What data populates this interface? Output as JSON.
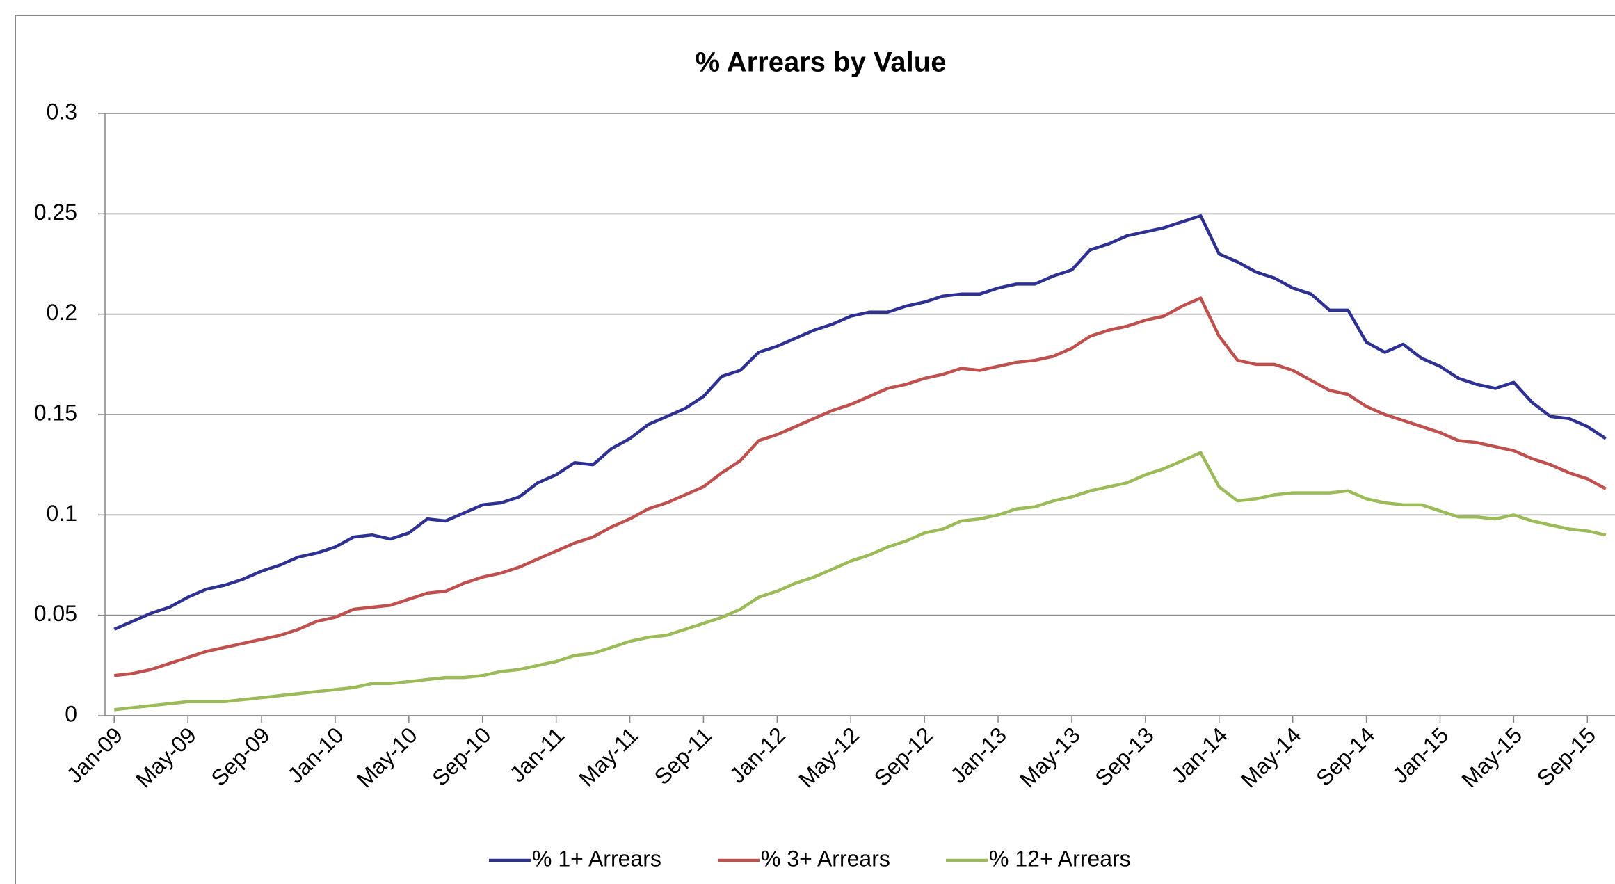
{
  "chart_data": {
    "type": "line",
    "title": "% Arrears by Value",
    "categories": [
      "Jan-09",
      null,
      null,
      null,
      "May-09",
      null,
      null,
      null,
      "Sep-09",
      null,
      null,
      null,
      "Jan-10",
      null,
      null,
      null,
      "May-10",
      null,
      null,
      null,
      "Sep-10",
      null,
      null,
      null,
      "Jan-11",
      null,
      null,
      null,
      "May-11",
      null,
      null,
      null,
      "Sep-11",
      null,
      null,
      null,
      "Jan-12",
      null,
      null,
      null,
      "May-12",
      null,
      null,
      null,
      "Sep-12",
      null,
      null,
      null,
      "Jan-13",
      null,
      null,
      null,
      "May-13",
      null,
      null,
      null,
      "Sep-13",
      null,
      null,
      null,
      "Jan-14",
      null,
      null,
      null,
      "May-14",
      null,
      null,
      null,
      "Sep-14",
      null,
      null,
      null,
      "Jan-15",
      null,
      null,
      null,
      "May-15",
      null,
      null,
      null,
      "Sep-15",
      null
    ],
    "series": [
      {
        "name": "% 1+ Arrears",
        "color": "#2e3192",
        "values": [
          0.043,
          0.047,
          0.051,
          0.054,
          0.059,
          0.063,
          0.065,
          0.068,
          0.072,
          0.075,
          0.079,
          0.081,
          0.084,
          0.089,
          0.09,
          0.088,
          0.091,
          0.098,
          0.097,
          0.101,
          0.105,
          0.106,
          0.109,
          0.116,
          0.12,
          0.126,
          0.125,
          0.133,
          0.138,
          0.145,
          0.149,
          0.153,
          0.159,
          0.169,
          0.172,
          0.181,
          0.184,
          0.188,
          0.192,
          0.195,
          0.199,
          0.201,
          0.201,
          0.204,
          0.206,
          0.209,
          0.21,
          0.21,
          0.213,
          0.215,
          0.215,
          0.219,
          0.222,
          0.232,
          0.235,
          0.239,
          0.241,
          0.243,
          0.246,
          0.249,
          0.23,
          0.226,
          0.221,
          0.218,
          0.213,
          0.21,
          0.202,
          0.202,
          0.186,
          0.181,
          0.185,
          0.178,
          0.174,
          0.168,
          0.165,
          0.163,
          0.166,
          0.156,
          0.149,
          0.148,
          0.144,
          0.138
        ]
      },
      {
        "name": "% 3+ Arrears",
        "color": "#c0504d",
        "values": [
          0.02,
          0.021,
          0.023,
          0.026,
          0.029,
          0.032,
          0.034,
          0.036,
          0.038,
          0.04,
          0.043,
          0.047,
          0.049,
          0.053,
          0.054,
          0.055,
          0.058,
          0.061,
          0.062,
          0.066,
          0.069,
          0.071,
          0.074,
          0.078,
          0.082,
          0.086,
          0.089,
          0.094,
          0.098,
          0.103,
          0.106,
          0.11,
          0.114,
          0.121,
          0.127,
          0.137,
          0.14,
          0.144,
          0.148,
          0.152,
          0.155,
          0.159,
          0.163,
          0.165,
          0.168,
          0.17,
          0.173,
          0.172,
          0.174,
          0.176,
          0.177,
          0.179,
          0.183,
          0.189,
          0.192,
          0.194,
          0.197,
          0.199,
          0.204,
          0.208,
          0.189,
          0.177,
          0.175,
          0.175,
          0.172,
          0.167,
          0.162,
          0.16,
          0.154,
          0.15,
          0.147,
          0.144,
          0.141,
          0.137,
          0.136,
          0.134,
          0.132,
          0.128,
          0.125,
          0.121,
          0.118,
          0.113
        ]
      },
      {
        "name": "% 12+ Arrears",
        "color": "#9bbb59",
        "values": [
          0.003,
          0.004,
          0.005,
          0.006,
          0.007,
          0.007,
          0.007,
          0.008,
          0.009,
          0.01,
          0.011,
          0.012,
          0.013,
          0.014,
          0.016,
          0.016,
          0.017,
          0.018,
          0.019,
          0.019,
          0.02,
          0.022,
          0.023,
          0.025,
          0.027,
          0.03,
          0.031,
          0.034,
          0.037,
          0.039,
          0.04,
          0.043,
          0.046,
          0.049,
          0.053,
          0.059,
          0.062,
          0.066,
          0.069,
          0.073,
          0.077,
          0.08,
          0.084,
          0.087,
          0.091,
          0.093,
          0.097,
          0.098,
          0.1,
          0.103,
          0.104,
          0.107,
          0.109,
          0.112,
          0.114,
          0.116,
          0.12,
          0.123,
          0.127,
          0.131,
          0.114,
          0.107,
          0.108,
          0.11,
          0.111,
          0.111,
          0.111,
          0.112,
          0.108,
          0.106,
          0.105,
          0.105,
          0.102,
          0.099,
          0.099,
          0.098,
          0.1,
          0.097,
          0.095,
          0.093,
          0.092,
          0.09
        ]
      }
    ],
    "ylim": [
      0,
      0.3
    ],
    "yticks": [
      0,
      0.05,
      0.1,
      0.15,
      0.2,
      0.25,
      0.3
    ],
    "grid": true,
    "legend": "bottom"
  }
}
